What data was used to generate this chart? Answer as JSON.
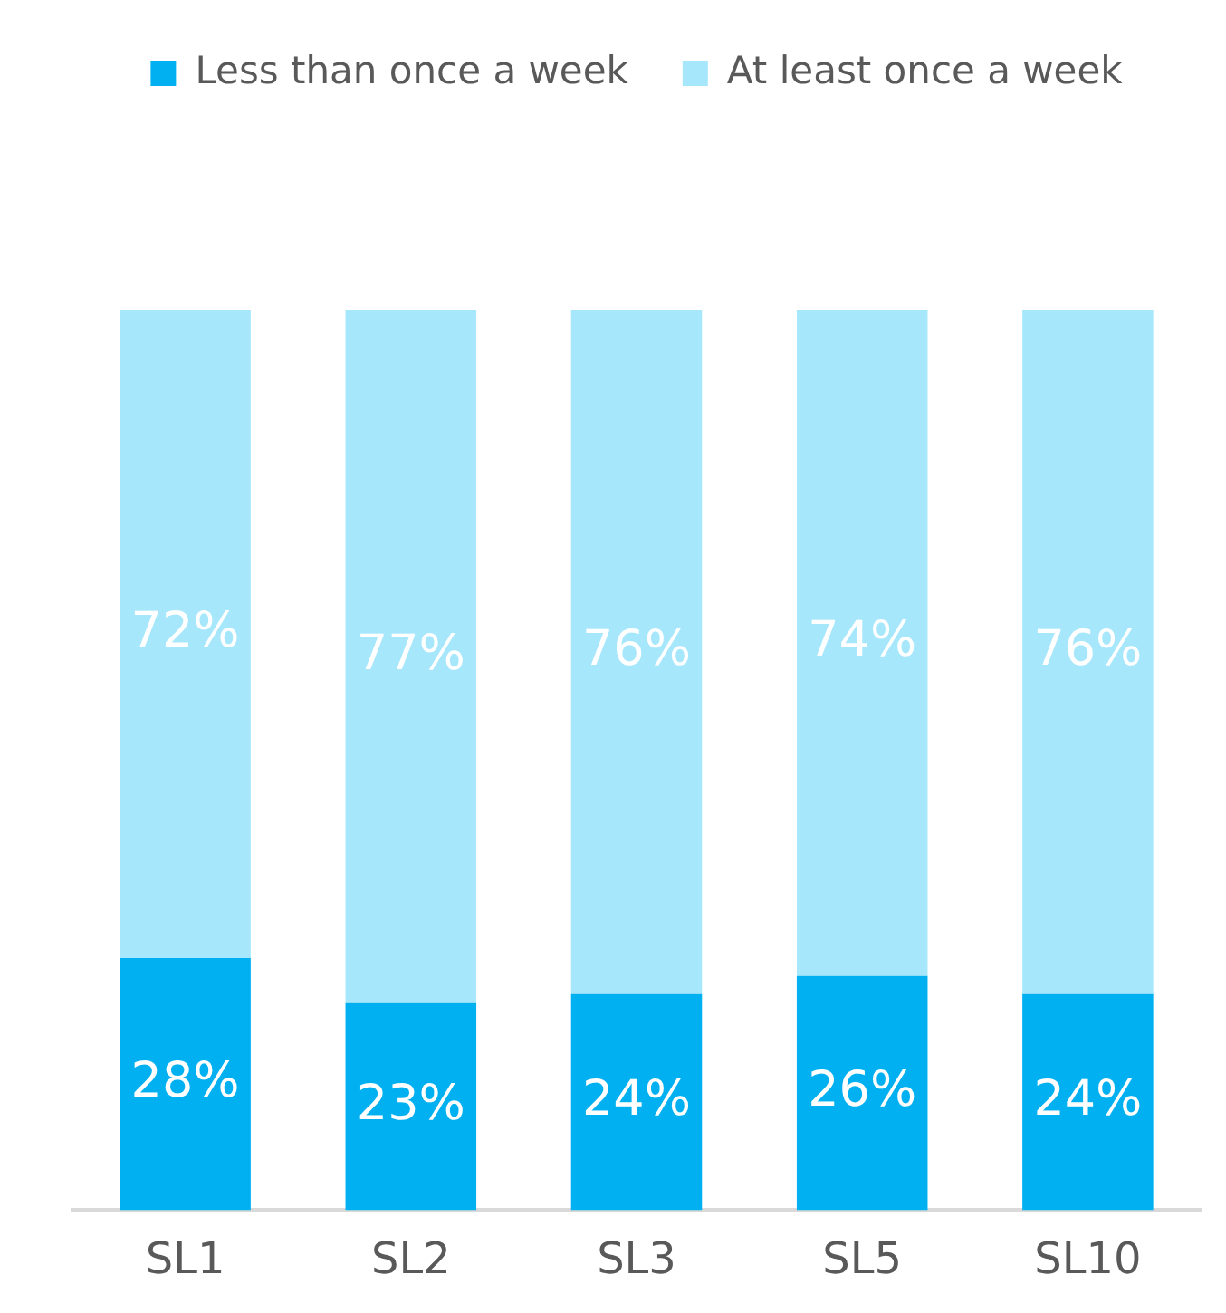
{
  "chart_data": {
    "type": "bar",
    "stacked": true,
    "categories": [
      "SL1",
      "SL2",
      "SL3",
      "SL5",
      "SL10"
    ],
    "series": [
      {
        "name": "Less than once a week",
        "color": "#00b0f0",
        "values": [
          28,
          23,
          24,
          26,
          24
        ],
        "value_labels": [
          "28%",
          "23%",
          "24%",
          "26%",
          "24%"
        ]
      },
      {
        "name": "At least once a week",
        "color": "#a6e7fc",
        "values": [
          72,
          77,
          76,
          74,
          76
        ],
        "value_labels": [
          "72%",
          "77%",
          "76%",
          "74%",
          "76%"
        ]
      }
    ],
    "ylim": [
      0,
      100
    ],
    "tick_labels": "x",
    "grid": false,
    "legend": "top"
  }
}
